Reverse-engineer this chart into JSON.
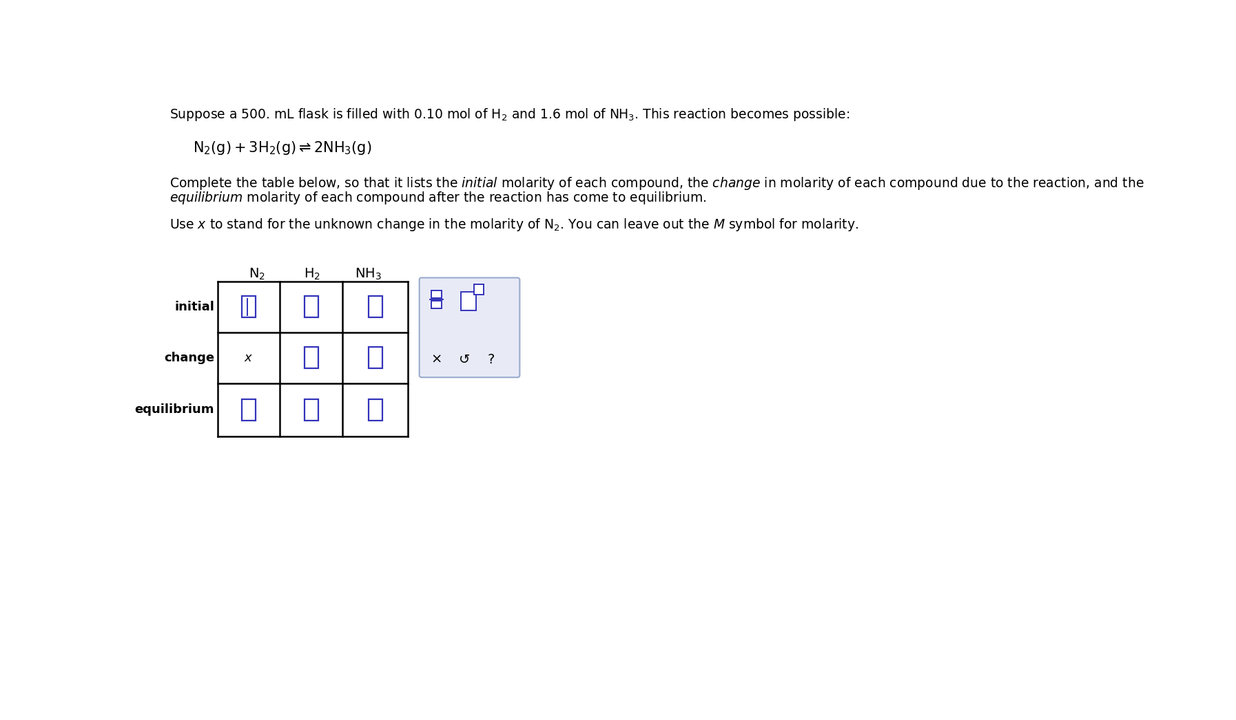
{
  "bg_color": "#ffffff",
  "text_color": "#000000",
  "input_box_color": "#3333bb",
  "line1": "Suppose a 500. mL flask is filled with 0.10 mol of H$_2$ and 1.6 mol of NH$_3$. This reaction becomes possible:",
  "line2_math": "$\\mathrm{N_2(g)+3H_2(g) \\rightleftharpoons 2NH_3(g)}$",
  "line3a": "Complete the table below, so that it lists the $\\it{initial}$ molarity of each compound, the $\\it{change}$ in molarity of each compound due to the reaction, and the",
  "line3b": "$\\it{equilibrium}$ molarity of each compound after the reaction has come to equilibrium.",
  "line4": "Use $\\it{x}$ to stand for the unknown change in the molarity of N$_2$. You can leave out the $\\it{M}$ symbol for molarity.",
  "col_headers": [
    "$\\mathrm{N_2}$",
    "$\\mathrm{H_2}$",
    "$\\mathrm{NH_3}$"
  ],
  "row_headers": [
    "initial",
    "change",
    "equilibrium"
  ],
  "text_fontsize": 13.5,
  "reaction_fontsize": 15,
  "col_header_fontsize": 14,
  "row_label_fontsize": 13
}
